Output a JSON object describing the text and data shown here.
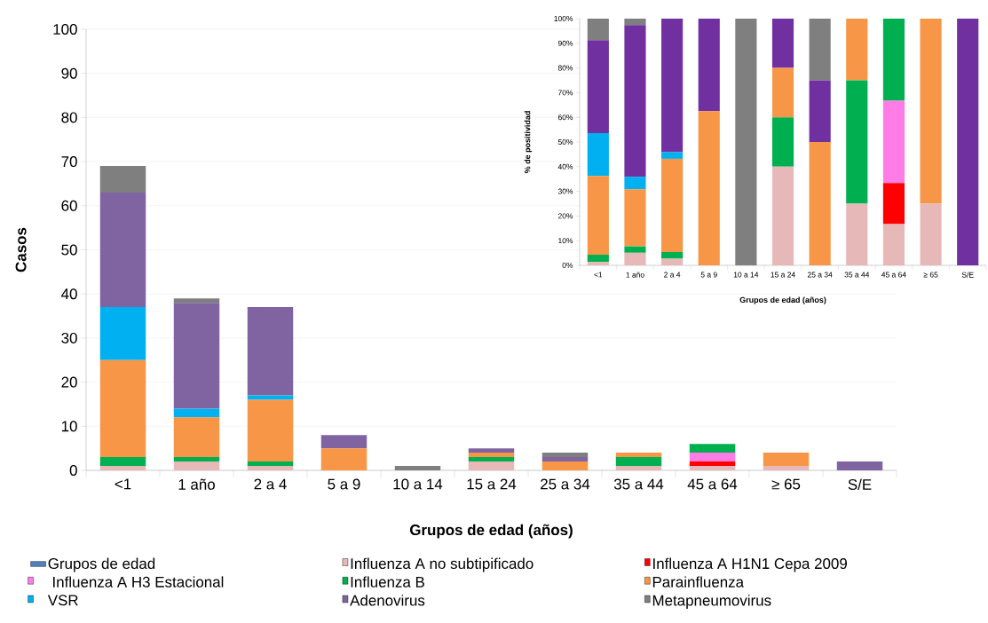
{
  "chart_data": [
    {
      "type": "bar",
      "stacked": true,
      "xlabel": "Grupos de edad (años)",
      "ylabel": "Casos",
      "categories": [
        "<1",
        "1 año",
        "2 a 4",
        "5 a 9",
        "10 a 14",
        "15 a 24",
        "25 a 34",
        "35 a 44",
        "45 a 64",
        "≥ 65",
        "S/E"
      ],
      "series": [
        {
          "name": "Grupos de edad",
          "color": "#4f81bd",
          "values": [
            null,
            null,
            null,
            null,
            null,
            null,
            null,
            null,
            null,
            null,
            null
          ]
        },
        {
          "name": "Influenza A no subtipificado",
          "color": "#e6b9b8",
          "values": [
            1,
            2,
            1,
            0,
            0,
            2,
            0,
            1,
            1,
            1,
            0
          ]
        },
        {
          "name": "Influenza A H1N1 Cepa 2009",
          "color": "#ff0000",
          "values": [
            0,
            0,
            0,
            0,
            0,
            0,
            0,
            0,
            1,
            0,
            0
          ]
        },
        {
          "name": " Influenza A H3 Estacional",
          "color": "#ff7ce6",
          "values": [
            0,
            0,
            0,
            0,
            0,
            0,
            0,
            0,
            2,
            0,
            0
          ]
        },
        {
          "name": "Influenza B",
          "color": "#00b050",
          "values": [
            2,
            1,
            1,
            0,
            0,
            1,
            0,
            2,
            2,
            0,
            0
          ]
        },
        {
          "name": "Parainfluenza",
          "color": "#f79646",
          "values": [
            22,
            9,
            14,
            5,
            0,
            1,
            2,
            1,
            0,
            3,
            0
          ]
        },
        {
          "name": "VSR",
          "color": "#00b0f0",
          "values": [
            12,
            2,
            1,
            0,
            0,
            0,
            0,
            0,
            0,
            0,
            0
          ]
        },
        {
          "name": "Adenovirus",
          "color": "#8064a2",
          "values": [
            26,
            24,
            20,
            3,
            0,
            1,
            1,
            0,
            0,
            0,
            2
          ]
        },
        {
          "name": "Metapneumovirus",
          "color": "#7f7f7f",
          "values": [
            6,
            1,
            0,
            0,
            1,
            0,
            1,
            0,
            0,
            0,
            0
          ]
        }
      ],
      "ylim": [
        0,
        100
      ],
      "yticks": [
        0,
        10,
        20,
        30,
        40,
        50,
        60,
        70,
        80,
        90,
        100
      ],
      "grid": "y",
      "legend": "bottom"
    },
    {
      "type": "bar",
      "stacked": true,
      "xlabel": "Grupos de edad (años)",
      "ylabel": "% de positividad",
      "categories": [
        "<1",
        "1 año",
        "2 a 4",
        "5 a 9",
        "10 a 14",
        "15 a 24",
        "25 a 34",
        "35 a 44",
        "45 a 64",
        "≥ 65",
        "S/E"
      ],
      "series": [
        {
          "color": "#e6b9b8",
          "values": [
            1.4,
            5.1,
            2.7,
            0,
            0,
            40,
            0,
            25,
            16.7,
            25,
            0
          ]
        },
        {
          "color": "#ff0000",
          "values": [
            0,
            0,
            0,
            0,
            0,
            0,
            0,
            0,
            16.7,
            0,
            0
          ]
        },
        {
          "color": "#ff7ce6",
          "values": [
            0,
            0,
            0,
            0,
            0,
            0,
            0,
            0,
            33.3,
            0,
            0
          ]
        },
        {
          "color": "#00b050",
          "values": [
            2.9,
            2.6,
            2.7,
            0,
            0,
            20,
            0,
            50,
            33.3,
            0,
            0
          ]
        },
        {
          "color": "#f79646",
          "values": [
            31.9,
            23.1,
            37.8,
            62.5,
            0,
            20,
            50,
            25,
            0,
            75,
            0
          ]
        },
        {
          "color": "#00b0f0",
          "values": [
            17.4,
            5.1,
            2.7,
            0,
            0,
            0,
            0,
            0,
            0,
            0,
            0
          ]
        },
        {
          "color": "#7030a0",
          "values": [
            37.7,
            61.5,
            54.1,
            37.5,
            0,
            20,
            25,
            0,
            0,
            0,
            100
          ]
        },
        {
          "color": "#7f7f7f",
          "values": [
            8.7,
            2.6,
            0,
            0,
            100,
            0,
            25,
            0,
            0,
            0,
            0
          ]
        }
      ],
      "ylim": [
        0,
        100
      ],
      "yticks": [
        {
          "value": 0,
          "label": "0%"
        },
        {
          "value": 10,
          "label": "10%"
        },
        {
          "value": 20,
          "label": "20%"
        },
        {
          "value": 30,
          "label": "30%"
        },
        {
          "value": 40,
          "label": "40%"
        },
        {
          "value": 50,
          "label": "50%"
        },
        {
          "value": 60,
          "label": "60%"
        },
        {
          "value": 70,
          "label": "70%"
        },
        {
          "value": 80,
          "label": "80%"
        },
        {
          "value": 90,
          "label": "90%"
        },
        {
          "value": 100,
          "label": "100%"
        }
      ]
    }
  ]
}
